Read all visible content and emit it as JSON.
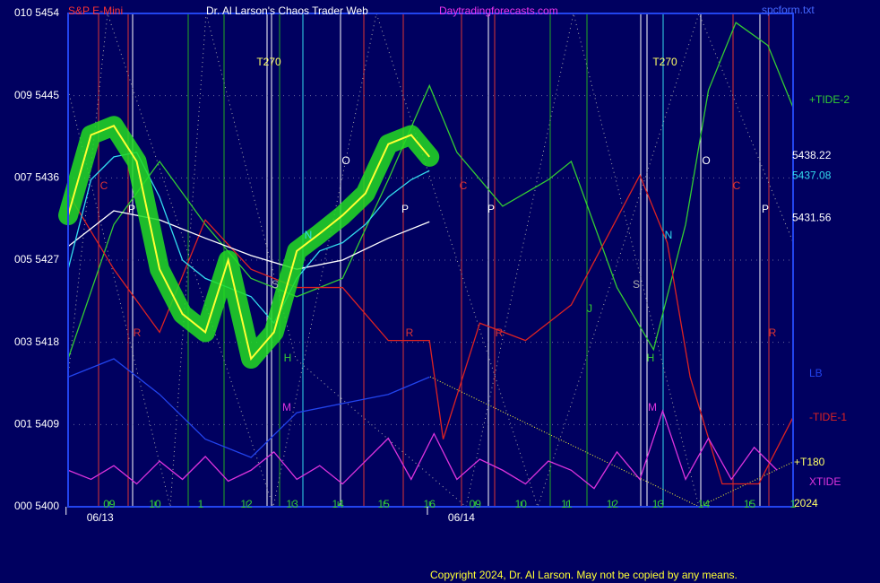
{
  "header": {
    "left": "S&P E-Mini",
    "center": "Dr. Al Larson's Chaos Trader Web",
    "site": "Daytradingforecasts.com",
    "file": "spcform.txt"
  },
  "copyright": "Copyright 2024, Dr. Al Larson. May not be copied by any means.",
  "chart_data": {
    "type": "line",
    "xlim": [
      0,
      15.85
    ],
    "ylim": [
      5400,
      5454
    ],
    "yticks": [
      {
        "value": 5454,
        "label": "010 5454"
      },
      {
        "value": 5445,
        "label": "009 5445"
      },
      {
        "value": 5436,
        "label": "007 5436"
      },
      {
        "value": 5427,
        "label": "005 5427"
      },
      {
        "value": 5418,
        "label": "003 5418"
      },
      {
        "value": 5409,
        "label": "001 5409"
      },
      {
        "value": 5400,
        "label": "000 5400"
      }
    ],
    "xticks": [
      {
        "value": 0.9,
        "label": "09"
      },
      {
        "value": 1.9,
        "label": "10"
      },
      {
        "value": 2.9,
        "label": "1"
      },
      {
        "value": 3.9,
        "label": "12"
      },
      {
        "value": 4.9,
        "label": "13"
      },
      {
        "value": 5.9,
        "label": "14"
      },
      {
        "value": 6.9,
        "label": "15"
      },
      {
        "value": 7.9,
        "label": "16"
      },
      {
        "value": 8.9,
        "label": "09"
      },
      {
        "value": 9.9,
        "label": "10"
      },
      {
        "value": 10.9,
        "label": "11"
      },
      {
        "value": 11.9,
        "label": "12"
      },
      {
        "value": 12.9,
        "label": "13"
      },
      {
        "value": 13.9,
        "label": "14"
      },
      {
        "value": 14.9,
        "label": "15"
      },
      {
        "value": 15.85,
        "label": "1"
      }
    ],
    "dates": [
      {
        "value": 0.7,
        "label": "06/13"
      },
      {
        "value": 8.6,
        "label": "06/14"
      }
    ],
    "grid": true,
    "series": [
      {
        "name": "+TIDE-2",
        "color": "#33cc33",
        "x": [
          0,
          1,
          2,
          3,
          4,
          5,
          6,
          7,
          7.9,
          8.5,
          9.5,
          10.5,
          11,
          12,
          12.8,
          13.5,
          14,
          14.6,
          15.3,
          15.85
        ],
        "values": [
          5416.2,
          5430.9,
          5437.8,
          5430.9,
          5425,
          5423,
          5425,
          5435.8,
          5446.1,
          5438.8,
          5432.9,
          5435.8,
          5437.8,
          5424,
          5417.2,
          5430.9,
          5445.6,
          5453,
          5450.5,
          5443.7
        ]
      },
      {
        "name": "-TIDE-1",
        "color": "#dd2222",
        "x": [
          0,
          1,
          2,
          3,
          4,
          5,
          6,
          7,
          7.9,
          8.2,
          9,
          10,
          11,
          12.5,
          13.1,
          13.6,
          14.3,
          15.1,
          15.85
        ],
        "values": [
          5434.3,
          5426,
          5419.1,
          5431.4,
          5426,
          5424,
          5424,
          5418.2,
          5418.2,
          5407.4,
          5420.1,
          5418.2,
          5422.1,
          5436.3,
          5428.9,
          5414.2,
          5402.5,
          5402.5,
          5409.8
        ]
      },
      {
        "name": "XTIDE",
        "color": "#dd33dd",
        "x": [
          0,
          0.5,
          1,
          1.5,
          2,
          2.5,
          3,
          3.5,
          4,
          4.5,
          5,
          5.5,
          6,
          6.5,
          7,
          7.5,
          8,
          8.5,
          9,
          9.5,
          10,
          10.5,
          11,
          11.5,
          12,
          12.5,
          13,
          13.5,
          14,
          14.5,
          15,
          15.5
        ],
        "values": [
          5404,
          5403,
          5404.5,
          5402.5,
          5405,
          5403,
          5405.5,
          5402.8,
          5404,
          5406,
          5403,
          5404.5,
          5402.5,
          5405,
          5407.5,
          5403,
          5408,
          5403,
          5405.2,
          5404,
          5402.5,
          5405,
          5404,
          5402,
          5406,
          5403,
          5410.5,
          5403,
          5407.5,
          5403,
          5406.5,
          5404
        ]
      },
      {
        "name": "LB",
        "color": "#2244ee",
        "x": [
          0,
          1,
          2,
          3,
          4,
          5,
          6,
          7,
          7.9
        ],
        "values": [
          5414.2,
          5416.2,
          5412.3,
          5407.4,
          5405.4,
          5410.3,
          5411.3,
          5412.3,
          5414.2
        ]
      },
      {
        "color": "#ffffff",
        "x": [
          0,
          1,
          2,
          3,
          4,
          5,
          6,
          7,
          7.9
        ],
        "values": [
          5428.5,
          5432.4,
          5431.4,
          5429.4,
          5427.5,
          5426,
          5427,
          5429.4,
          5431.2
        ]
      },
      {
        "color": "#33ddee",
        "x": [
          0,
          0.5,
          1,
          1.5,
          2,
          2.5,
          3,
          3.5,
          4,
          4.5,
          5,
          5.5,
          6,
          6.5,
          7,
          7.5,
          7.9
        ],
        "values": [
          5426,
          5435.8,
          5438.3,
          5438.8,
          5433.9,
          5427,
          5425,
          5424,
          5423,
          5420.1,
          5425,
          5428,
          5428.9,
          5430.9,
          5433.9,
          5435.8,
          5436.8
        ]
      },
      {
        "color": "#ffff33",
        "glow": "#22dd22",
        "x": [
          0,
          0.5,
          1,
          1.5,
          2,
          2.5,
          3,
          3.5,
          4,
          4.5,
          5,
          5.5,
          6,
          6.5,
          7,
          7.5,
          7.9
        ],
        "values": [
          5431.9,
          5440.7,
          5441.7,
          5437.8,
          5426,
          5421.1,
          5419.1,
          5427,
          5416.2,
          5419.1,
          5428,
          5429.9,
          5431.9,
          5434.3,
          5439.7,
          5440.7,
          5438.3
        ]
      }
    ],
    "right_labels": [
      {
        "value": 5438.22,
        "color": "#ffffff"
      },
      {
        "value": 5437.08,
        "color": "#33ddee"
      },
      {
        "value": 5431.56,
        "color": "#ffffff"
      }
    ],
    "extra_labels": [
      {
        "text": "+T180",
        "color": "#ffff66"
      },
      {
        "text": "2024",
        "color": "#ffff66"
      }
    ],
    "annotations": [
      "T270",
      "T270",
      "C",
      "C",
      "C",
      "P",
      "P",
      "P",
      "P",
      "O",
      "O",
      "R",
      "R",
      "R",
      "R",
      "S",
      "S",
      "N",
      "N",
      "H",
      "H",
      "M",
      "M",
      "J"
    ]
  }
}
